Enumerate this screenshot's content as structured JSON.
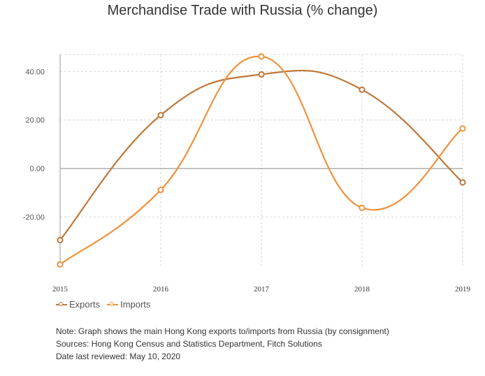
{
  "chart_data": {
    "type": "line",
    "title": "Merchandise Trade with Russia (% change)",
    "xlabel": "",
    "ylabel": "",
    "categories": [
      "2015",
      "2016",
      "2017",
      "2018",
      "2019"
    ],
    "ylim": [
      -40,
      47
    ],
    "yticks": [
      -20,
      0,
      20,
      40
    ],
    "ytick_labels": [
      "-20.00",
      "0.00",
      "20.00",
      "40.00"
    ],
    "grid": true,
    "legend_position": "bottom-left",
    "series": [
      {
        "name": "Exports",
        "color": "#c0773a",
        "values": [
          -29.5,
          22.0,
          38.8,
          32.5,
          -5.7
        ]
      },
      {
        "name": "Imports",
        "color": "#f0923b",
        "values": [
          -39.5,
          -8.8,
          46.2,
          -16.2,
          16.5
        ]
      }
    ]
  },
  "notes": [
    "Note: Graph shows the main Hong Kong exports to/imports from Russia (by consignment)",
    "Sources: Hong Kong Census and Statistics Department, Fitch Solutions",
    "Date last reviewed: May 10, 2020"
  ]
}
